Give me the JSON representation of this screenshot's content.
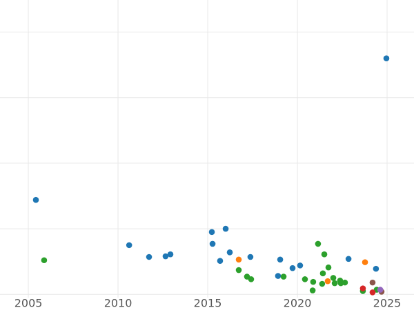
{
  "chart_data": {
    "type": "scatter",
    "xlim": [
      2003.42,
      2026.5
    ],
    "xticks": [
      2005,
      2010,
      2015,
      2020,
      2025
    ],
    "ylim": [
      -0.05,
      4.49
    ],
    "yticks": [
      0,
      1,
      2,
      3,
      4
    ],
    "show_ytick_labels": false,
    "grid": true,
    "series": [
      {
        "color": "#1f77b4",
        "x": [
          2005.42,
          2010.62,
          2011.73,
          2012.65,
          2012.92,
          2015.23,
          2015.27,
          2016.0,
          2015.69,
          2016.23,
          2017.38,
          2018.92,
          2019.04,
          2019.73,
          2020.15,
          2022.85,
          2024.38,
          2024.96
        ],
        "values": [
          1.44,
          0.75,
          0.57,
          0.58,
          0.61,
          0.95,
          0.77,
          1.0,
          0.51,
          0.64,
          0.57,
          0.28,
          0.53,
          0.4,
          0.44,
          0.54,
          0.39,
          3.6
        ]
      },
      {
        "color": "#2ca02c",
        "x": [
          2005.88,
          2016.73,
          2017.19,
          2017.42,
          2019.23,
          2020.42,
          2020.85,
          2020.88,
          2021.15,
          2021.38,
          2021.42,
          2021.5,
          2021.73,
          2022.0,
          2022.08,
          2022.38,
          2022.42,
          2022.65,
          2023.65,
          2024.42
        ],
        "values": [
          0.52,
          0.37,
          0.27,
          0.23,
          0.27,
          0.23,
          0.06,
          0.19,
          0.77,
          0.16,
          0.32,
          0.61,
          0.41,
          0.25,
          0.17,
          0.21,
          0.17,
          0.18,
          0.05,
          0.07
        ]
      },
      {
        "color": "#ff7f0e",
        "x": [
          2016.73,
          2021.69,
          2023.77
        ],
        "values": [
          0.53,
          0.2,
          0.49
        ]
      },
      {
        "color": "#d62728",
        "x": [
          2023.65,
          2024.19
        ],
        "values": [
          0.09,
          0.03
        ]
      },
      {
        "color": "#8c564b",
        "x": [
          2024.19,
          2024.69
        ],
        "values": [
          0.18,
          0.04
        ]
      },
      {
        "color": "#9467bd",
        "x": [
          2024.62
        ],
        "values": [
          0.07
        ]
      }
    ]
  }
}
